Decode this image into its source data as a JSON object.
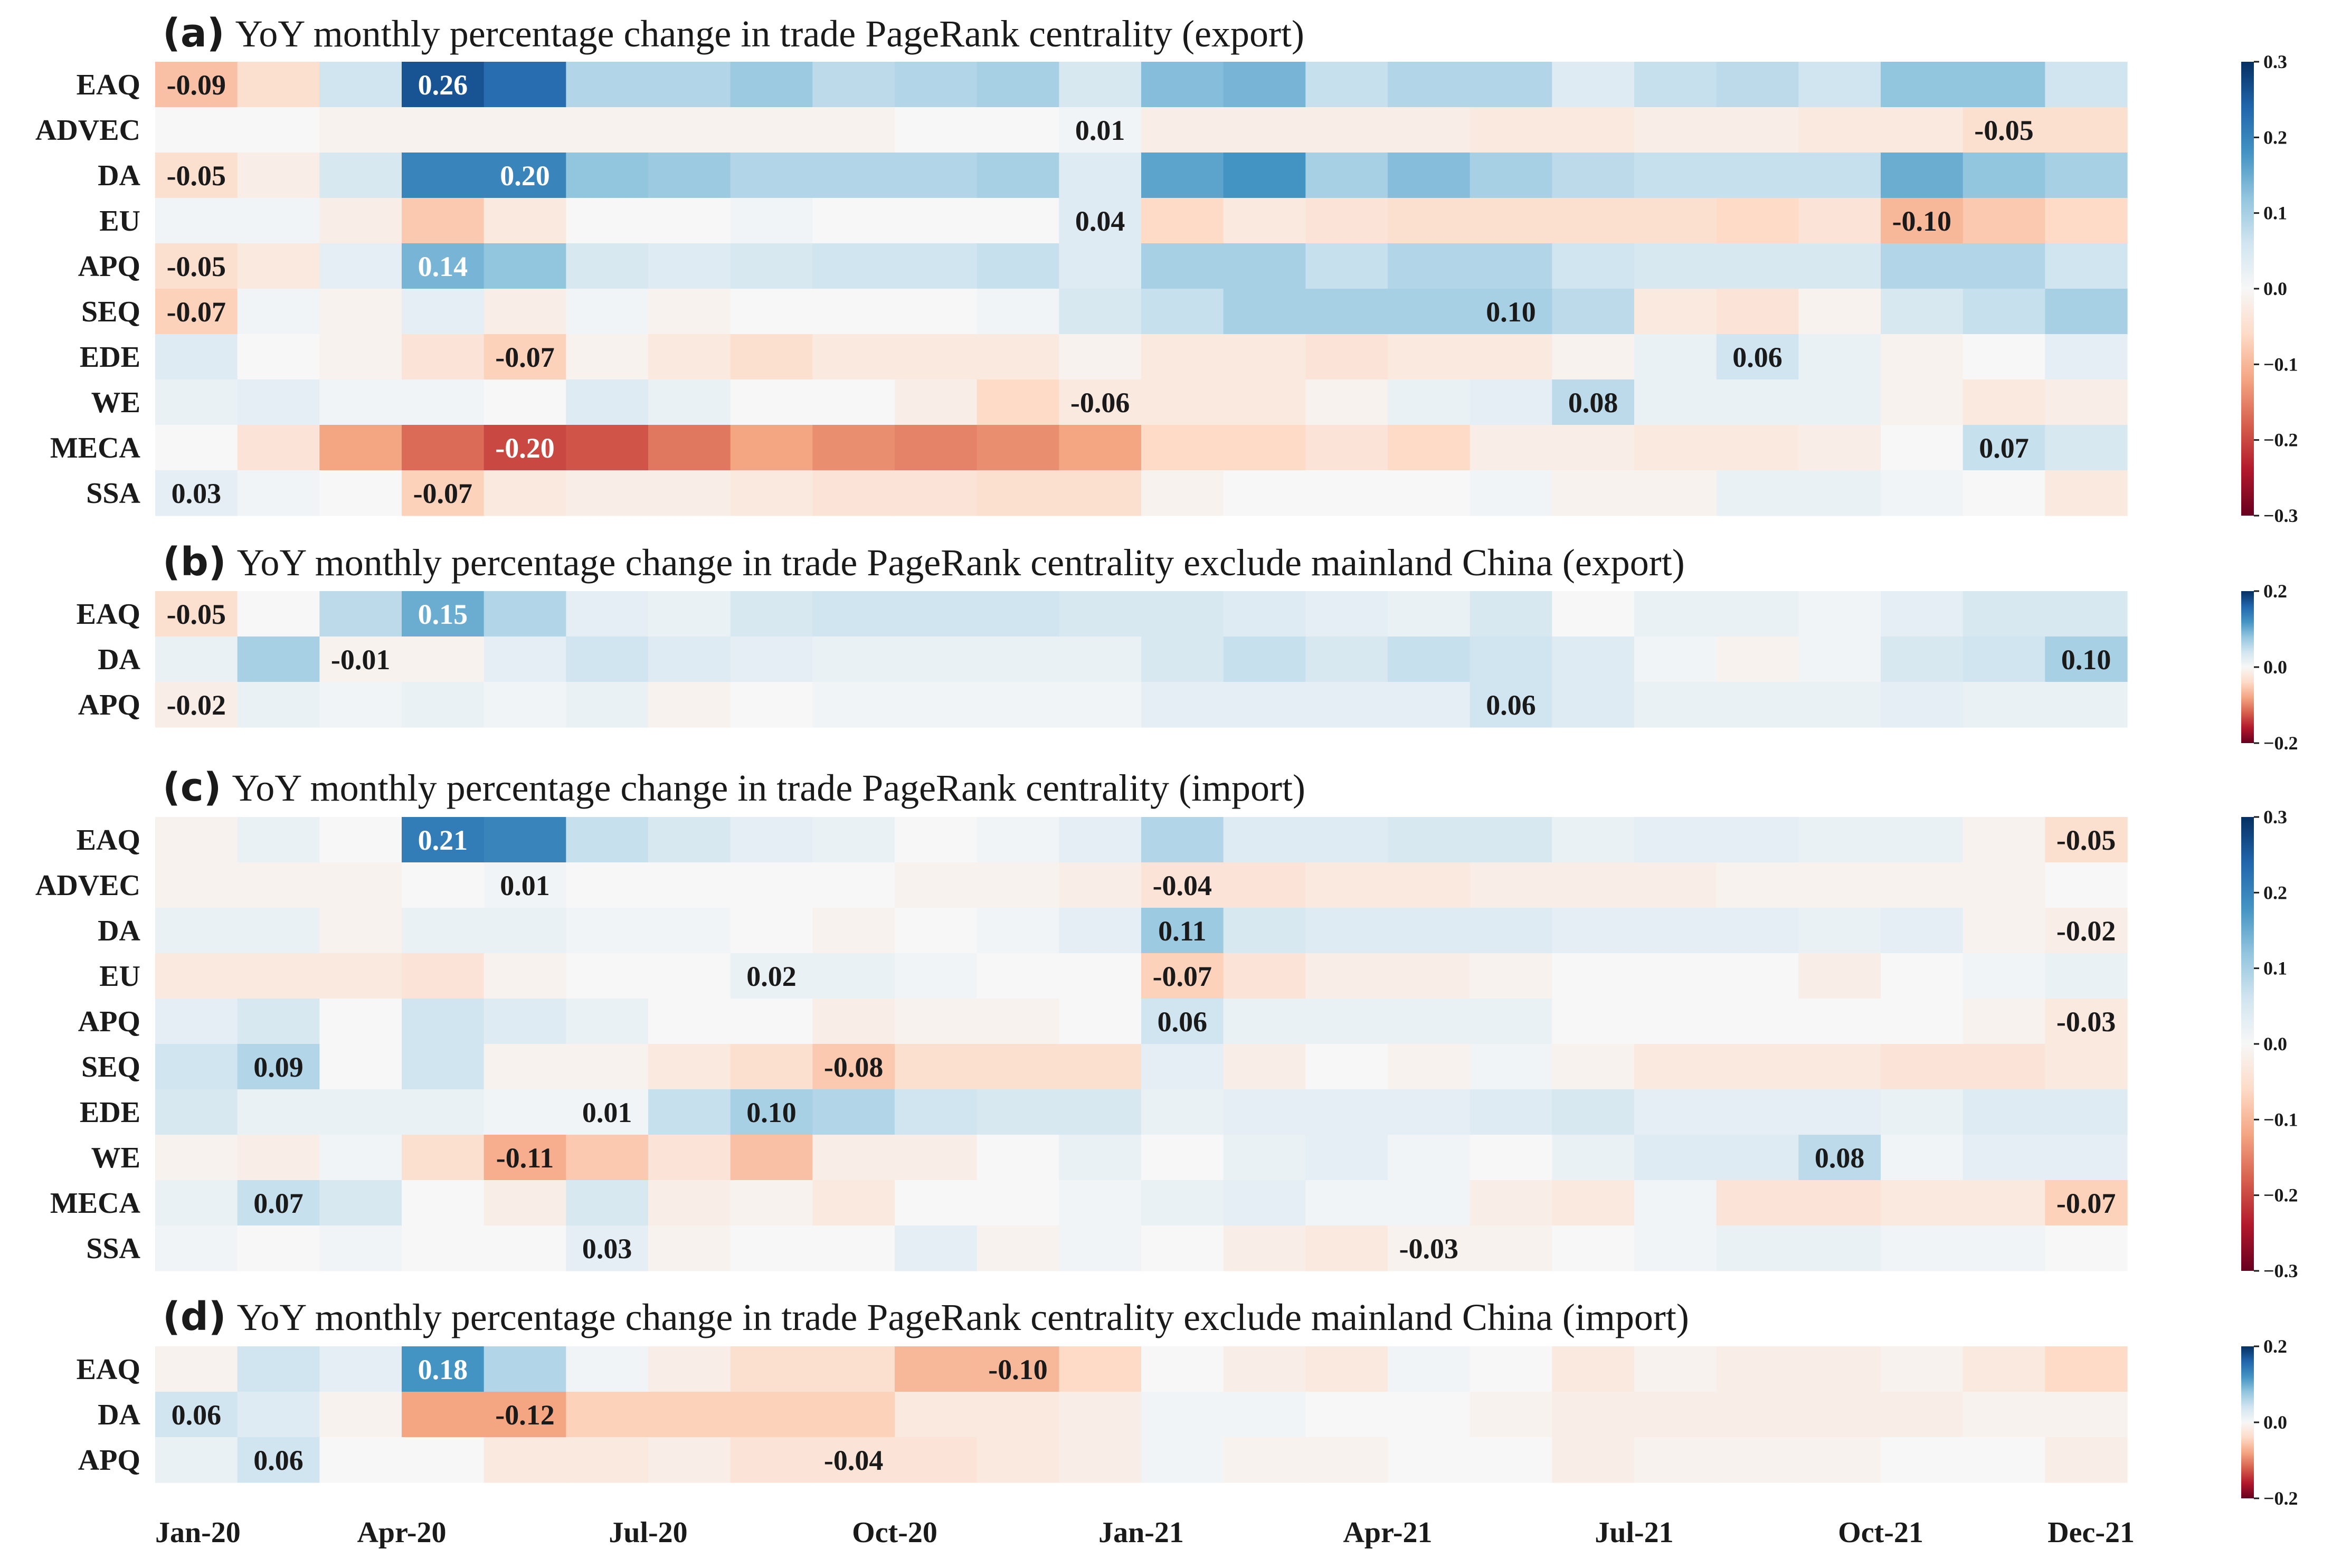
{
  "colors": {
    "scale_min": -0.3,
    "scale_max": 0.3,
    "stops": [
      "#67001f",
      "#b2182b",
      "#d6604d",
      "#f4a582",
      "#fddbc7",
      "#f7f7f7",
      "#d1e5f0",
      "#92c5de",
      "#4393c3",
      "#2166ac",
      "#053061"
    ]
  },
  "chart_data": [
    {
      "type": "heatmap",
      "letter": "(a)",
      "title": "YoY monthly percentage change in trade PageRank centrality (export)",
      "rows": [
        "EAQ",
        "ADVEC",
        "DA",
        "EU",
        "APQ",
        "SEQ",
        "EDE",
        "WE",
        "MECA",
        "SSA"
      ],
      "values": [
        [
          -0.09,
          -0.05,
          0.06,
          0.26,
          0.23,
          0.09,
          0.09,
          0.11,
          0.08,
          0.09,
          0.1,
          0.05,
          0.13,
          0.14,
          0.07,
          0.09,
          0.09,
          0.04,
          0.07,
          0.08,
          0.06,
          0.12,
          0.12,
          0.06
        ],
        [
          0.0,
          0.0,
          -0.01,
          -0.01,
          -0.01,
          -0.01,
          -0.01,
          -0.01,
          -0.01,
          0.0,
          0.0,
          0.01,
          -0.02,
          -0.02,
          -0.02,
          -0.02,
          -0.03,
          -0.03,
          -0.02,
          -0.02,
          -0.03,
          -0.03,
          -0.05,
          -0.05
        ],
        [
          -0.05,
          -0.02,
          0.05,
          0.2,
          0.2,
          0.12,
          0.11,
          0.09,
          0.09,
          0.09,
          0.1,
          0.04,
          0.16,
          0.18,
          0.1,
          0.13,
          0.1,
          0.08,
          0.07,
          0.07,
          0.07,
          0.15,
          0.12,
          0.1
        ],
        [
          0.01,
          0.01,
          -0.02,
          -0.08,
          -0.03,
          0.0,
          0.0,
          0.01,
          0.0,
          0.0,
          0.0,
          0.04,
          -0.06,
          -0.03,
          -0.04,
          -0.05,
          -0.05,
          -0.05,
          -0.05,
          -0.06,
          -0.04,
          -0.1,
          -0.08,
          -0.06
        ],
        [
          -0.05,
          -0.03,
          0.03,
          0.14,
          0.12,
          0.05,
          0.04,
          0.05,
          0.06,
          0.06,
          0.07,
          0.04,
          0.1,
          0.1,
          0.07,
          0.09,
          0.09,
          0.06,
          0.05,
          0.05,
          0.05,
          0.09,
          0.09,
          0.06
        ],
        [
          -0.07,
          0.01,
          -0.01,
          0.03,
          -0.02,
          0.01,
          -0.01,
          0.0,
          0.0,
          0.0,
          0.01,
          0.05,
          0.07,
          0.1,
          0.1,
          0.1,
          0.1,
          0.08,
          -0.03,
          -0.04,
          -0.01,
          0.05,
          0.07,
          0.1
        ],
        [
          0.04,
          0.0,
          -0.01,
          -0.04,
          -0.07,
          -0.01,
          -0.03,
          -0.05,
          -0.03,
          -0.03,
          -0.03,
          -0.01,
          -0.03,
          -0.03,
          -0.04,
          -0.03,
          -0.03,
          -0.01,
          0.02,
          0.06,
          0.02,
          -0.01,
          0.0,
          0.03
        ],
        [
          0.02,
          0.03,
          0.01,
          0.01,
          0.0,
          0.04,
          0.02,
          0.0,
          0.0,
          -0.02,
          -0.06,
          -0.03,
          -0.03,
          -0.03,
          -0.01,
          0.02,
          0.03,
          0.08,
          0.02,
          0.02,
          0.02,
          -0.01,
          -0.03,
          -0.02
        ],
        [
          0.0,
          -0.04,
          -0.12,
          -0.17,
          -0.2,
          -0.19,
          -0.16,
          -0.12,
          -0.14,
          -0.15,
          -0.14,
          -0.12,
          -0.06,
          -0.06,
          -0.04,
          -0.06,
          -0.02,
          -0.02,
          -0.03,
          -0.03,
          -0.02,
          0.0,
          0.07,
          0.05
        ],
        [
          0.03,
          0.01,
          0.0,
          -0.07,
          -0.03,
          -0.02,
          -0.02,
          -0.03,
          -0.04,
          -0.04,
          -0.05,
          -0.05,
          -0.01,
          0.0,
          0.0,
          0.0,
          0.01,
          -0.01,
          -0.01,
          0.02,
          0.02,
          0.01,
          0.0,
          -0.03
        ]
      ],
      "labels": [
        [
          0,
          0,
          "-0.09"
        ],
        [
          0,
          3,
          "0.26"
        ],
        [
          1,
          11,
          "0.01"
        ],
        [
          1,
          22,
          "-0.05"
        ],
        [
          2,
          0,
          "-0.05"
        ],
        [
          2,
          4,
          "0.20"
        ],
        [
          3,
          11,
          "0.04"
        ],
        [
          3,
          21,
          "-0.10"
        ],
        [
          4,
          0,
          "-0.05"
        ],
        [
          4,
          3,
          "0.14"
        ],
        [
          5,
          0,
          "-0.07"
        ],
        [
          5,
          16,
          "0.10"
        ],
        [
          6,
          4,
          "-0.07"
        ],
        [
          6,
          19,
          "0.06"
        ],
        [
          7,
          11,
          "-0.06"
        ],
        [
          7,
          17,
          "0.08"
        ],
        [
          8,
          4,
          "-0.20"
        ],
        [
          8,
          22,
          "0.07"
        ],
        [
          9,
          0,
          "0.03"
        ],
        [
          9,
          3,
          "-0.07"
        ]
      ],
      "colorbar": {
        "ticks": [
          "0.3",
          "0.2",
          "0.1",
          "0.0",
          "−0.1",
          "−0.2",
          "−0.3"
        ]
      }
    },
    {
      "type": "heatmap",
      "letter": "(b)",
      "title": "YoY monthly percentage change in trade PageRank centrality exclude mainland China (export)",
      "rows": [
        "EAQ",
        "DA",
        "APQ"
      ],
      "values": [
        [
          -0.05,
          0.0,
          0.08,
          0.15,
          0.09,
          0.03,
          0.02,
          0.05,
          0.06,
          0.06,
          0.06,
          0.05,
          0.05,
          0.04,
          0.03,
          0.02,
          0.05,
          0.0,
          0.02,
          0.02,
          0.01,
          0.03,
          0.05,
          0.05
        ],
        [
          0.02,
          0.1,
          -0.01,
          -0.01,
          0.03,
          0.06,
          0.04,
          0.03,
          0.02,
          0.02,
          0.02,
          0.02,
          0.05,
          0.07,
          0.05,
          0.07,
          0.06,
          0.04,
          0.01,
          -0.01,
          0.01,
          0.05,
          0.06,
          0.1
        ],
        [
          -0.02,
          0.02,
          0.01,
          0.02,
          0.01,
          0.02,
          -0.01,
          0.0,
          0.01,
          0.01,
          0.01,
          0.01,
          0.03,
          0.03,
          0.03,
          0.03,
          0.06,
          0.04,
          0.02,
          0.02,
          0.02,
          0.03,
          0.02,
          0.02
        ]
      ],
      "labels": [
        [
          0,
          0,
          "-0.05"
        ],
        [
          0,
          3,
          "0.15"
        ],
        [
          1,
          2,
          "-0.01"
        ],
        [
          1,
          23,
          "0.10"
        ],
        [
          2,
          0,
          "-0.02"
        ],
        [
          2,
          16,
          "0.06"
        ]
      ],
      "colorbar": {
        "ticks": [
          "0.2",
          "0.0",
          "−0.2"
        ]
      }
    },
    {
      "type": "heatmap",
      "letter": "(c)",
      "title": "YoY monthly percentage change in trade PageRank centrality (import)",
      "rows": [
        "EAQ",
        "ADVEC",
        "DA",
        "EU",
        "APQ",
        "SEQ",
        "EDE",
        "WE",
        "MECA",
        "SSA"
      ],
      "values": [
        [
          -0.01,
          0.02,
          0.0,
          0.21,
          0.2,
          0.07,
          0.05,
          0.03,
          0.02,
          0.0,
          0.01,
          0.03,
          0.09,
          0.04,
          0.04,
          0.05,
          0.05,
          0.02,
          0.03,
          0.03,
          0.02,
          0.02,
          -0.01,
          -0.05
        ],
        [
          -0.01,
          -0.01,
          -0.01,
          0.0,
          0.01,
          0.0,
          0.0,
          0.0,
          0.0,
          -0.01,
          -0.01,
          -0.02,
          -0.04,
          -0.04,
          -0.03,
          -0.03,
          -0.02,
          -0.02,
          -0.02,
          -0.01,
          -0.01,
          -0.01,
          -0.01,
          0.0
        ],
        [
          0.02,
          0.02,
          -0.01,
          0.02,
          0.02,
          0.01,
          0.01,
          0.0,
          -0.01,
          0.0,
          0.01,
          0.03,
          0.11,
          0.05,
          0.04,
          0.04,
          0.04,
          0.03,
          0.03,
          0.03,
          0.02,
          0.03,
          -0.01,
          -0.02
        ],
        [
          -0.03,
          -0.03,
          -0.03,
          -0.04,
          -0.01,
          0.0,
          0.0,
          0.02,
          0.02,
          0.01,
          0.0,
          0.0,
          -0.07,
          -0.04,
          -0.02,
          -0.02,
          -0.01,
          0.0,
          0.0,
          0.0,
          -0.02,
          0.0,
          0.01,
          0.02
        ],
        [
          0.03,
          0.05,
          0.0,
          0.06,
          0.04,
          0.02,
          0.0,
          0.0,
          -0.02,
          -0.01,
          -0.01,
          0.0,
          0.06,
          0.02,
          0.02,
          0.02,
          0.02,
          0.0,
          0.0,
          0.0,
          0.0,
          0.0,
          -0.01,
          -0.03
        ],
        [
          0.06,
          0.09,
          0.0,
          0.06,
          -0.01,
          -0.01,
          -0.03,
          -0.05,
          -0.08,
          -0.05,
          -0.05,
          -0.05,
          0.03,
          -0.02,
          0.0,
          -0.01,
          0.01,
          -0.01,
          -0.03,
          -0.03,
          -0.03,
          -0.04,
          -0.04,
          -0.03
        ],
        [
          0.05,
          0.02,
          0.02,
          0.02,
          0.01,
          0.01,
          0.07,
          0.1,
          0.09,
          0.06,
          0.05,
          0.05,
          0.02,
          0.03,
          0.03,
          0.03,
          0.04,
          0.05,
          0.03,
          0.03,
          0.03,
          0.02,
          0.04,
          0.04
        ],
        [
          -0.01,
          -0.02,
          0.01,
          -0.05,
          -0.11,
          -0.08,
          -0.04,
          -0.09,
          -0.02,
          -0.02,
          0.0,
          0.02,
          0.0,
          0.02,
          0.03,
          0.01,
          0.0,
          0.02,
          0.04,
          0.04,
          0.08,
          0.01,
          0.03,
          0.03
        ],
        [
          0.02,
          0.07,
          0.05,
          0.0,
          -0.02,
          0.05,
          -0.02,
          -0.01,
          -0.03,
          0.0,
          0.0,
          0.01,
          0.02,
          0.03,
          0.01,
          0.01,
          -0.02,
          -0.03,
          0.01,
          -0.04,
          -0.04,
          -0.03,
          -0.03,
          -0.07
        ],
        [
          0.01,
          0.0,
          0.01,
          0.0,
          0.0,
          0.03,
          -0.01,
          0.0,
          0.0,
          0.03,
          -0.01,
          0.01,
          0.0,
          -0.02,
          -0.03,
          -0.01,
          -0.01,
          0.0,
          0.01,
          0.02,
          0.02,
          0.01,
          0.01,
          0.0
        ]
      ],
      "labels": [
        [
          0,
          3,
          "0.21"
        ],
        [
          0,
          23,
          "-0.05"
        ],
        [
          1,
          4,
          "0.01"
        ],
        [
          1,
          12,
          "-0.04"
        ],
        [
          2,
          12,
          "0.11"
        ],
        [
          2,
          23,
          "-0.02"
        ],
        [
          3,
          7,
          "0.02"
        ],
        [
          3,
          12,
          "-0.07"
        ],
        [
          4,
          12,
          "0.06"
        ],
        [
          4,
          23,
          "-0.03"
        ],
        [
          5,
          1,
          "0.09"
        ],
        [
          5,
          8,
          "-0.08"
        ],
        [
          6,
          5,
          "0.01"
        ],
        [
          6,
          7,
          "0.10"
        ],
        [
          7,
          4,
          "-0.11"
        ],
        [
          7,
          20,
          "0.08"
        ],
        [
          8,
          1,
          "0.07"
        ],
        [
          8,
          23,
          "-0.07"
        ],
        [
          9,
          5,
          "0.03"
        ],
        [
          9,
          15,
          "-0.03"
        ]
      ],
      "colorbar": {
        "ticks": [
          "0.3",
          "0.2",
          "0.1",
          "0.0",
          "−0.1",
          "−0.2",
          "−0.3"
        ]
      }
    },
    {
      "type": "heatmap",
      "letter": "(d)",
      "title": "YoY monthly percentage change in trade PageRank centrality exclude mainland China (import)",
      "rows": [
        "EAQ",
        "DA",
        "APQ"
      ],
      "values": [
        [
          -0.01,
          0.06,
          0.03,
          0.18,
          0.09,
          0.01,
          -0.02,
          -0.05,
          -0.05,
          -0.1,
          -0.1,
          -0.06,
          0.0,
          -0.02,
          -0.03,
          0.01,
          0.0,
          -0.03,
          -0.01,
          -0.02,
          -0.02,
          -0.01,
          -0.03,
          -0.06
        ],
        [
          0.06,
          0.04,
          -0.01,
          -0.12,
          -0.12,
          -0.07,
          -0.07,
          -0.07,
          -0.07,
          -0.03,
          -0.03,
          -0.02,
          0.01,
          0.01,
          0.0,
          0.0,
          -0.01,
          -0.02,
          -0.02,
          -0.02,
          -0.02,
          -0.02,
          -0.01,
          -0.01
        ],
        [
          0.02,
          0.06,
          0.0,
          0.0,
          -0.03,
          -0.03,
          -0.02,
          -0.04,
          -0.04,
          -0.04,
          -0.03,
          -0.02,
          0.01,
          -0.01,
          -0.01,
          0.0,
          0.0,
          -0.02,
          -0.01,
          -0.01,
          -0.01,
          0.0,
          0.0,
          -0.02
        ]
      ],
      "labels": [
        [
          0,
          3,
          "0.18"
        ],
        [
          0,
          10,
          "-0.10"
        ],
        [
          1,
          0,
          "0.06"
        ],
        [
          1,
          4,
          "-0.12"
        ],
        [
          2,
          1,
          "0.06"
        ],
        [
          2,
          8,
          "-0.04"
        ]
      ],
      "colorbar": {
        "ticks": [
          "0.2",
          "0.0",
          "−0.2"
        ]
      }
    }
  ],
  "x_axis": {
    "tick_labels": [
      "Jan-20",
      "Apr-20",
      "Jul-20",
      "Oct-20",
      "Jan-21",
      "Apr-21",
      "Jul-21",
      "Oct-21",
      "Dec-21"
    ],
    "tick_months": [
      0,
      3,
      6,
      9,
      12,
      15,
      18,
      21,
      23
    ],
    "n_months": 24
  }
}
